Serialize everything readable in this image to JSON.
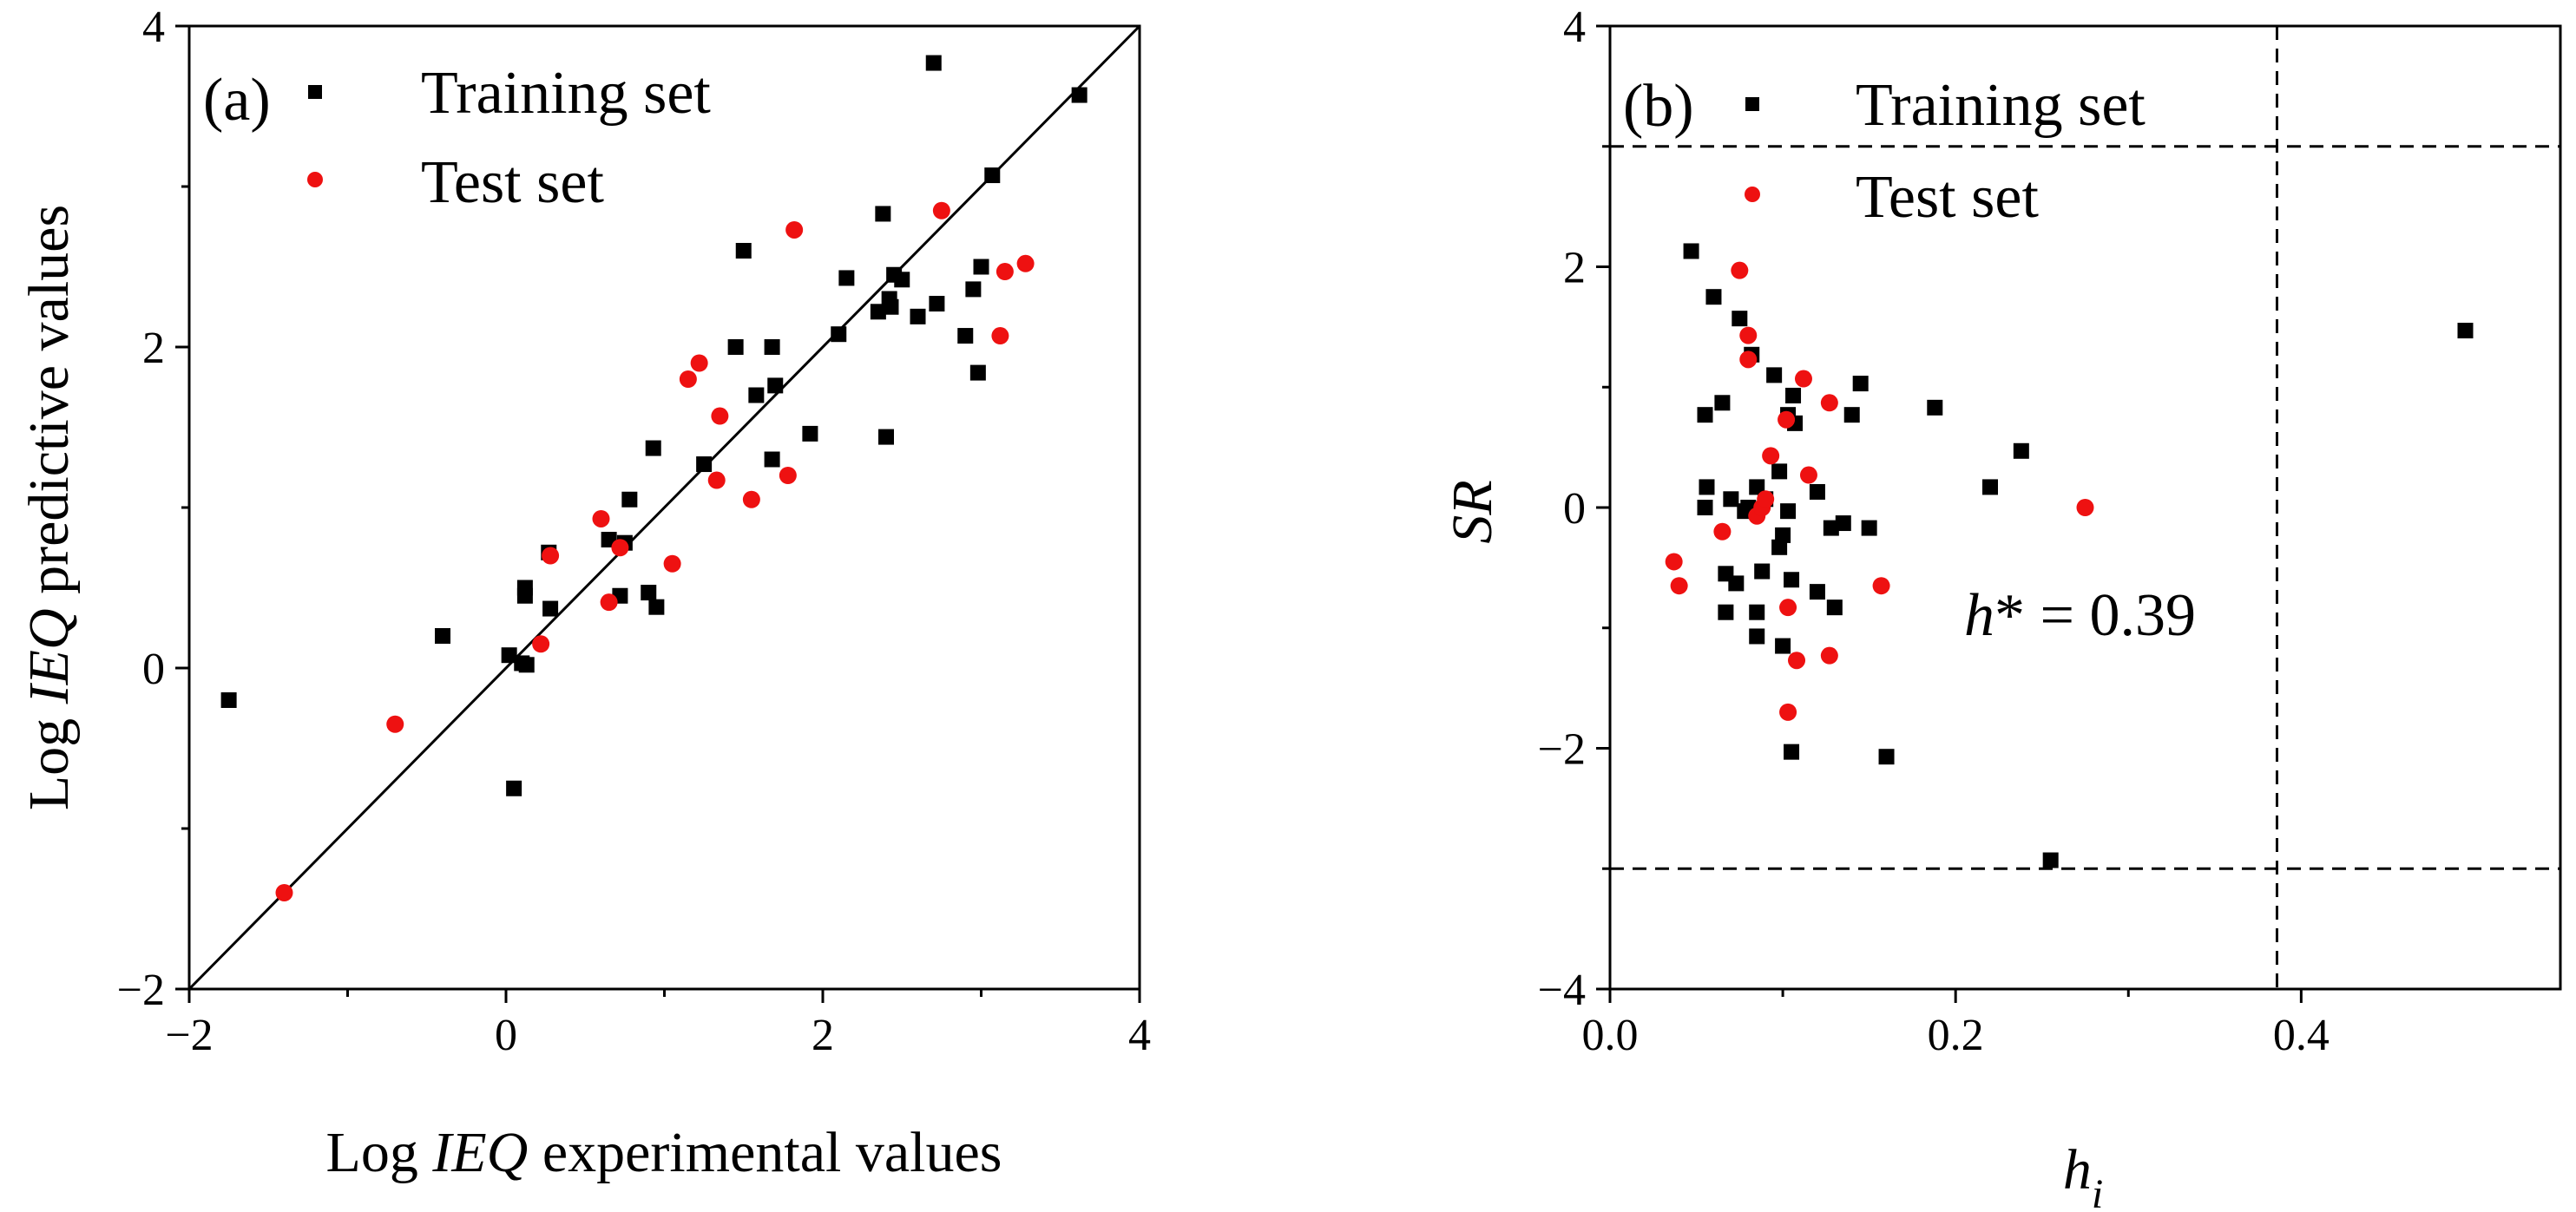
{
  "colors": {
    "training": "#000000",
    "test": "#ee1111",
    "axis": "#000000"
  },
  "chart_data": [
    {
      "type": "scatter",
      "panel_label": "(a)",
      "title": "",
      "xlabel_parts": [
        "Log ",
        "IEQ",
        " experimental values"
      ],
      "ylabel_parts": [
        "Log ",
        "IEQ",
        " predictive values"
      ],
      "xlim": [
        -2,
        4
      ],
      "ylim": [
        -2,
        4
      ],
      "xticks": [
        -2,
        0,
        2,
        4
      ],
      "yticks": [
        -2,
        0,
        2,
        4
      ],
      "xtick_labels": [
        "−2",
        "0",
        "2",
        "4"
      ],
      "ytick_labels": [
        "−2",
        "0",
        "2",
        "4"
      ],
      "reference_line": "y = x",
      "legend": [
        "Training set",
        "Test set"
      ],
      "legend_position": "top-left",
      "series": [
        {
          "name": "Training set",
          "marker": "square",
          "points": [
            [
              -1.75,
              -0.2
            ],
            [
              -0.4,
              0.2
            ],
            [
              0.02,
              0.08
            ],
            [
              0.05,
              -0.75
            ],
            [
              0.1,
              0.03
            ],
            [
              0.12,
              0.45
            ],
            [
              0.12,
              0.5
            ],
            [
              0.13,
              0.02
            ],
            [
              0.27,
              0.72
            ],
            [
              0.28,
              0.37
            ],
            [
              0.65,
              0.8
            ],
            [
              0.72,
              0.45
            ],
            [
              0.75,
              0.78
            ],
            [
              0.78,
              1.05
            ],
            [
              0.9,
              0.47
            ],
            [
              0.93,
              1.37
            ],
            [
              0.95,
              0.38
            ],
            [
              1.25,
              1.27
            ],
            [
              1.45,
              2.0
            ],
            [
              1.5,
              2.6
            ],
            [
              1.58,
              1.7
            ],
            [
              1.68,
              1.3
            ],
            [
              1.68,
              2.0
            ],
            [
              1.7,
              1.76
            ],
            [
              1.92,
              1.46
            ],
            [
              2.1,
              2.08
            ],
            [
              2.15,
              2.43
            ],
            [
              2.35,
              2.22
            ],
            [
              2.38,
              2.83
            ],
            [
              2.4,
              1.44
            ],
            [
              2.42,
              2.3
            ],
            [
              2.43,
              2.25
            ],
            [
              2.45,
              2.45
            ],
            [
              2.5,
              2.42
            ],
            [
              2.6,
              2.19
            ],
            [
              2.72,
              2.27
            ],
            [
              2.7,
              3.77
            ],
            [
              2.9,
              2.07
            ],
            [
              2.95,
              2.36
            ],
            [
              2.98,
              1.84
            ],
            [
              3.0,
              2.5
            ],
            [
              3.07,
              3.07
            ],
            [
              3.62,
              3.57
            ]
          ]
        },
        {
          "name": "Test set",
          "marker": "circle",
          "points": [
            [
              -1.4,
              -1.4
            ],
            [
              -0.7,
              -0.35
            ],
            [
              0.22,
              0.15
            ],
            [
              0.28,
              0.7
            ],
            [
              0.6,
              0.93
            ],
            [
              0.65,
              0.41
            ],
            [
              0.72,
              0.75
            ],
            [
              1.05,
              0.65
            ],
            [
              1.15,
              1.8
            ],
            [
              1.22,
              1.9
            ],
            [
              1.33,
              1.17
            ],
            [
              1.35,
              1.57
            ],
            [
              1.55,
              1.05
            ],
            [
              1.78,
              1.2
            ],
            [
              1.82,
              2.73
            ],
            [
              2.75,
              2.85
            ],
            [
              3.12,
              2.07
            ],
            [
              3.15,
              2.47
            ],
            [
              3.28,
              2.52
            ]
          ]
        }
      ]
    },
    {
      "type": "scatter",
      "panel_label": "(b)",
      "title": "",
      "xlabel": "h",
      "xlabel_sub": "i",
      "ylabel": "SR",
      "xlim": [
        0.0,
        0.55
      ],
      "ylim": [
        -4,
        4
      ],
      "xticks": [
        0.0,
        0.2,
        0.4
      ],
      "yticks": [
        -4,
        -2,
        0,
        2,
        4
      ],
      "xtick_labels": [
        "0.0",
        "0.2",
        "0.4"
      ],
      "ytick_labels": [
        "−4",
        "−2",
        "0",
        "2",
        "4"
      ],
      "threshold_lines": {
        "horizontal": [
          3,
          -3
        ],
        "vertical": [
          0.386
        ]
      },
      "annotation": {
        "italic": "h",
        "rest": "* = 0.39"
      },
      "legend": [
        "Training set",
        "Test set"
      ],
      "legend_position": "top-left",
      "series": [
        {
          "name": "Training set",
          "marker": "square",
          "points": [
            [
              0.047,
              2.13
            ],
            [
              0.055,
              0.77
            ],
            [
              0.056,
              0.17
            ],
            [
              0.055,
              0.0
            ],
            [
              0.06,
              1.75
            ],
            [
              0.065,
              0.87
            ],
            [
              0.067,
              -0.87
            ],
            [
              0.067,
              -0.55
            ],
            [
              0.07,
              0.07
            ],
            [
              0.073,
              -0.63
            ],
            [
              0.075,
              1.57
            ],
            [
              0.078,
              -0.03
            ],
            [
              0.08,
              0.0
            ],
            [
              0.082,
              1.27
            ],
            [
              0.085,
              0.17
            ],
            [
              0.085,
              -0.87
            ],
            [
              0.085,
              -1.07
            ],
            [
              0.088,
              -0.53
            ],
            [
              0.09,
              0.07
            ],
            [
              0.095,
              1.1
            ],
            [
              0.098,
              0.3
            ],
            [
              0.098,
              -0.33
            ],
            [
              0.1,
              -1.15
            ],
            [
              0.1,
              -0.23
            ],
            [
              0.103,
              0.77
            ],
            [
              0.103,
              -0.03
            ],
            [
              0.105,
              -0.6
            ],
            [
              0.105,
              -2.03
            ],
            [
              0.106,
              0.93
            ],
            [
              0.107,
              0.7
            ],
            [
              0.12,
              0.13
            ],
            [
              0.12,
              -0.7
            ],
            [
              0.128,
              -0.17
            ],
            [
              0.13,
              -0.83
            ],
            [
              0.135,
              -0.13
            ],
            [
              0.14,
              0.77
            ],
            [
              0.145,
              1.03
            ],
            [
              0.15,
              -0.17
            ],
            [
              0.16,
              -2.07
            ],
            [
              0.188,
              0.83
            ],
            [
              0.22,
              0.17
            ],
            [
              0.238,
              0.47
            ],
            [
              0.255,
              -2.93
            ],
            [
              0.495,
              1.47
            ]
          ]
        },
        {
          "name": "Test set",
          "marker": "circle",
          "points": [
            [
              0.037,
              -0.45
            ],
            [
              0.04,
              -0.65
            ],
            [
              0.065,
              -0.2
            ],
            [
              0.075,
              1.97
            ],
            [
              0.08,
              1.43
            ],
            [
              0.08,
              1.23
            ],
            [
              0.085,
              -0.07
            ],
            [
              0.088,
              0.0
            ],
            [
              0.09,
              0.07
            ],
            [
              0.093,
              0.43
            ],
            [
              0.102,
              0.73
            ],
            [
              0.103,
              -0.83
            ],
            [
              0.103,
              -1.7
            ],
            [
              0.108,
              -1.27
            ],
            [
              0.112,
              1.07
            ],
            [
              0.115,
              0.27
            ],
            [
              0.127,
              0.87
            ],
            [
              0.127,
              -1.23
            ],
            [
              0.157,
              -0.65
            ],
            [
              0.275,
              0.0
            ]
          ]
        }
      ]
    }
  ]
}
